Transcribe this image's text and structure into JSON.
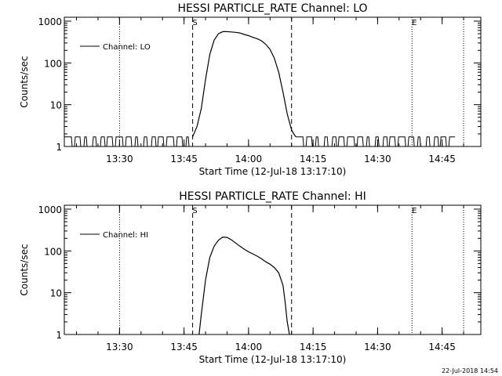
{
  "chart_data": [
    {
      "type": "line",
      "title": "HESSI PARTICLE_RATE Channel: LO",
      "xlabel": "Start Time (12-Jul-18 13:17:10)",
      "ylabel": "Counts/sec",
      "y_scale": "log",
      "ylim": [
        1,
        1000
      ],
      "xlim": [
        "13:17:10",
        "14:54:00"
      ],
      "x_ticks": [
        "13:30",
        "13:45",
        "14:00",
        "14:15",
        "14:30",
        "14:45"
      ],
      "y_ticks": [
        "1",
        "10",
        "100",
        "1000"
      ],
      "legend": {
        "position": "top-left",
        "entries": [
          "Channel: LO"
        ]
      },
      "markers": {
        "dotted": [
          "13:30",
          "14:38",
          "14:50"
        ],
        "dashed": [
          "13:47",
          "14:10"
        ],
        "labels": [
          {
            "text": "S",
            "time": "13:47"
          },
          {
            "text": "E",
            "time": "14:38"
          }
        ]
      },
      "series": [
        {
          "name": "Channel: LO",
          "background": {
            "start": "13:17:10",
            "end": "13:47",
            "level_low": 1,
            "level_high": 1.7
          },
          "background2": {
            "start": "14:11",
            "end": "14:48",
            "level_low": 1,
            "level_high": 1.7
          },
          "x": [
            "13:47",
            "13:48",
            "13:49",
            "13:50",
            "13:51",
            "13:52",
            "13:53",
            "13:54",
            "13:55",
            "13:56",
            "13:57",
            "13:58",
            "13:59",
            "14:00",
            "14:01",
            "14:02",
            "14:03",
            "14:04",
            "14:05",
            "14:06",
            "14:07",
            "14:08",
            "14:09",
            "14:10",
            "14:10:30",
            "14:11"
          ],
          "y": [
            1.7,
            3,
            8,
            40,
            160,
            350,
            500,
            560,
            560,
            550,
            540,
            520,
            480,
            450,
            410,
            380,
            340,
            280,
            210,
            130,
            60,
            20,
            6,
            2.5,
            2,
            1.7
          ]
        }
      ]
    },
    {
      "type": "line",
      "title": "HESSI PARTICLE_RATE Channel: HI",
      "xlabel": "Start Time (12-Jul-18 13:17:10)",
      "ylabel": "Counts/sec",
      "y_scale": "log",
      "ylim": [
        1,
        1000
      ],
      "xlim": [
        "13:17:10",
        "14:54:00"
      ],
      "x_ticks": [
        "13:30",
        "13:45",
        "14:00",
        "14:15",
        "14:30",
        "14:45"
      ],
      "y_ticks": [
        "1",
        "10",
        "100",
        "1000"
      ],
      "legend": {
        "position": "top-left",
        "entries": [
          "Channel: HI"
        ]
      },
      "markers": {
        "dotted": [
          "13:30",
          "14:38",
          "14:50"
        ],
        "dashed": [
          "13:47",
          "14:10"
        ],
        "labels": [
          {
            "text": "S",
            "time": "13:47"
          },
          {
            "text": "E",
            "time": "14:38"
          }
        ]
      },
      "series": [
        {
          "name": "Channel: HI",
          "x": [
            "13:48:30",
            "13:49",
            "13:50",
            "13:51",
            "13:52",
            "13:53",
            "13:54",
            "13:55",
            "13:56",
            "13:57",
            "13:58",
            "13:59",
            "14:00",
            "14:01",
            "14:02",
            "14:03",
            "14:04",
            "14:05",
            "14:06",
            "14:07",
            "14:08",
            "14:08:30",
            "14:09",
            "14:09:30"
          ],
          "y": [
            1,
            3,
            20,
            70,
            130,
            180,
            215,
            210,
            185,
            155,
            130,
            110,
            95,
            85,
            75,
            65,
            55,
            48,
            40,
            30,
            15,
            6,
            2,
            1
          ]
        }
      ]
    }
  ],
  "timestamp": "22-Jul-2018 14:54"
}
